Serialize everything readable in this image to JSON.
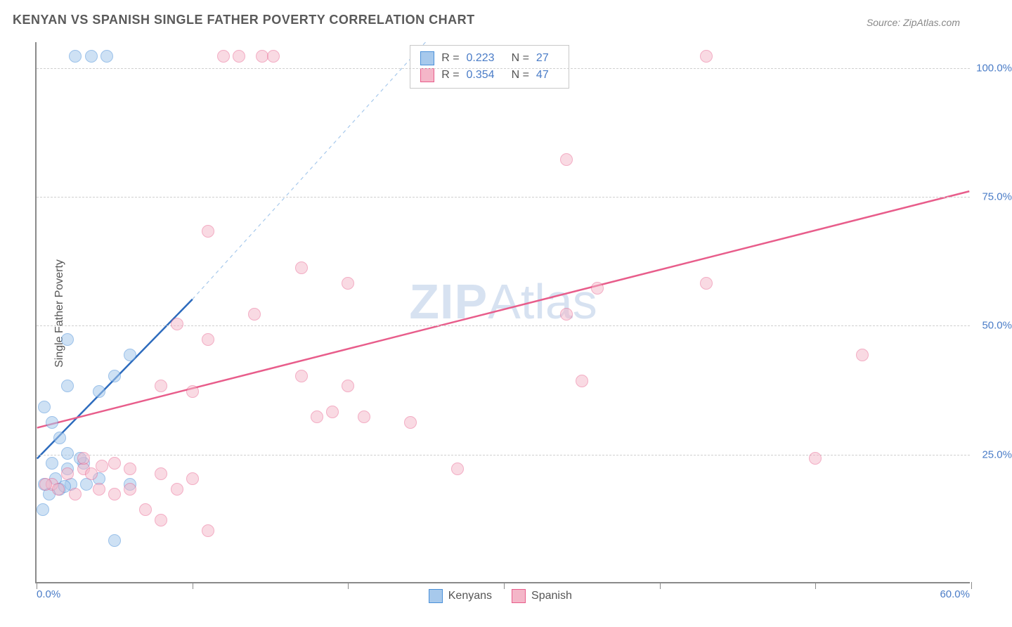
{
  "title": "KENYAN VS SPANISH SINGLE FATHER POVERTY CORRELATION CHART",
  "source": "Source: ZipAtlas.com",
  "ylabel": "Single Father Poverty",
  "watermark_zip": "ZIP",
  "watermark_atlas": "Atlas",
  "chart": {
    "type": "scatter",
    "xlim": [
      0,
      60
    ],
    "ylim": [
      0,
      105
    ],
    "x_tick_label_left": "0.0%",
    "x_tick_label_right": "60.0%",
    "x_tick_positions": [
      0,
      10,
      20,
      30,
      40,
      50,
      60
    ],
    "y_gridlines": [
      25,
      50,
      75,
      100
    ],
    "y_tick_labels": [
      "25.0%",
      "50.0%",
      "75.0%",
      "100.0%"
    ],
    "background_color": "#ffffff",
    "grid_color": "#d0d0d0",
    "axis_color": "#8a8a8a",
    "tick_label_color": "#4a7cc7",
    "point_radius": 9,
    "series": [
      {
        "name": "Kenyans",
        "fill_color": "#a7c9ec",
        "stroke_color": "#4a90d9",
        "fill_opacity": 0.55,
        "R": "0.223",
        "N": "27",
        "points": [
          [
            2.5,
            102
          ],
          [
            3.5,
            102
          ],
          [
            4.5,
            102
          ],
          [
            2,
            47
          ],
          [
            6,
            44
          ],
          [
            2,
            38
          ],
          [
            4,
            37
          ],
          [
            5,
            40
          ],
          [
            0.5,
            34
          ],
          [
            1,
            31
          ],
          [
            1.5,
            28
          ],
          [
            2,
            25
          ],
          [
            1,
            23
          ],
          [
            2,
            22
          ],
          [
            1.2,
            20
          ],
          [
            2.2,
            19
          ],
          [
            0.5,
            19
          ],
          [
            1.5,
            18
          ],
          [
            0.8,
            17
          ],
          [
            1.8,
            18.5
          ],
          [
            0.4,
            14
          ],
          [
            3,
            23
          ],
          [
            4,
            20
          ],
          [
            6,
            19
          ],
          [
            5,
            8
          ],
          [
            2.8,
            24
          ],
          [
            3.2,
            19
          ]
        ],
        "trend": {
          "x1": 0,
          "y1": 24,
          "x2": 10,
          "y2": 55,
          "color": "#2d6bbd",
          "width": 2.5
        },
        "trend_dashed": {
          "x1": 10,
          "y1": 55,
          "x2": 25,
          "y2": 105,
          "color": "#a7c9ec",
          "width": 1.2
        }
      },
      {
        "name": "Spanish",
        "fill_color": "#f4b6c8",
        "stroke_color": "#e85d8b",
        "fill_opacity": 0.5,
        "R": "0.354",
        "N": "47",
        "points": [
          [
            12,
            102
          ],
          [
            13,
            102
          ],
          [
            14.5,
            102
          ],
          [
            15.2,
            102
          ],
          [
            43,
            102
          ],
          [
            11,
            68
          ],
          [
            17,
            61
          ],
          [
            20,
            58
          ],
          [
            34,
            82
          ],
          [
            9,
            50
          ],
          [
            11,
            47
          ],
          [
            14,
            52
          ],
          [
            8,
            38
          ],
          [
            10,
            37
          ],
          [
            17,
            40
          ],
          [
            18,
            32
          ],
          [
            19,
            33
          ],
          [
            20,
            38
          ],
          [
            21,
            32
          ],
          [
            24,
            31
          ],
          [
            34,
            52
          ],
          [
            36,
            57
          ],
          [
            43,
            58
          ],
          [
            35,
            39
          ],
          [
            50,
            24
          ],
          [
            53,
            44
          ],
          [
            1,
            19
          ],
          [
            2,
            21
          ],
          [
            3,
            22
          ],
          [
            3.5,
            21
          ],
          [
            4,
            18
          ],
          [
            5,
            17
          ],
          [
            6,
            18
          ],
          [
            7,
            14
          ],
          [
            8,
            12
          ],
          [
            9,
            18
          ],
          [
            11,
            10
          ],
          [
            5,
            23
          ],
          [
            6,
            22
          ],
          [
            8,
            21
          ],
          [
            10,
            20
          ],
          [
            27,
            22
          ],
          [
            3,
            24
          ],
          [
            4.2,
            22.5
          ],
          [
            0.6,
            19
          ],
          [
            1.4,
            18
          ],
          [
            2.5,
            17
          ]
        ],
        "trend": {
          "x1": 0,
          "y1": 30,
          "x2": 60,
          "y2": 76,
          "color": "#e85d8b",
          "width": 2.5
        }
      }
    ]
  },
  "legend_top": {
    "rows": [
      {
        "swatch_fill": "#a7c9ec",
        "swatch_border": "#4a90d9",
        "r_label": "R =",
        "r_val": "0.223",
        "n_label": "N =",
        "n_val": "27"
      },
      {
        "swatch_fill": "#f4b6c8",
        "swatch_border": "#e85d8b",
        "r_label": "R =",
        "r_val": "0.354",
        "n_label": "N =",
        "n_val": "47"
      }
    ]
  },
  "legend_bottom": {
    "items": [
      {
        "swatch_fill": "#a7c9ec",
        "swatch_border": "#4a90d9",
        "label": "Kenyans"
      },
      {
        "swatch_fill": "#f4b6c8",
        "swatch_border": "#e85d8b",
        "label": "Spanish"
      }
    ]
  }
}
